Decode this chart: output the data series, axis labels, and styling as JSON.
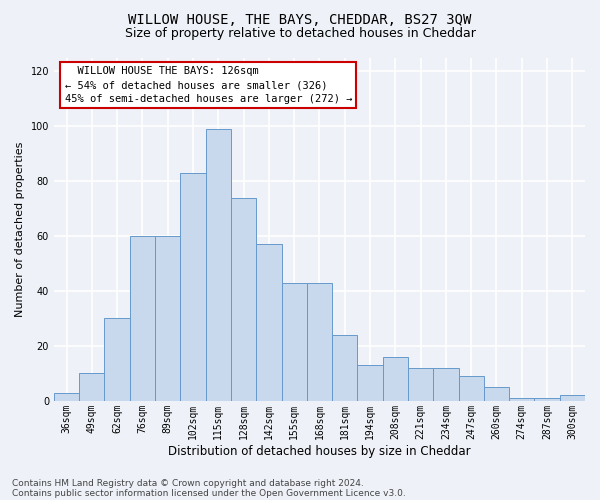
{
  "title": "WILLOW HOUSE, THE BAYS, CHEDDAR, BS27 3QW",
  "subtitle": "Size of property relative to detached houses in Cheddar",
  "xlabel": "Distribution of detached houses by size in Cheddar",
  "ylabel": "Number of detached properties",
  "categories": [
    "36sqm",
    "49sqm",
    "62sqm",
    "76sqm",
    "89sqm",
    "102sqm",
    "115sqm",
    "128sqm",
    "142sqm",
    "155sqm",
    "168sqm",
    "181sqm",
    "194sqm",
    "208sqm",
    "221sqm",
    "234sqm",
    "247sqm",
    "260sqm",
    "274sqm",
    "287sqm",
    "300sqm"
  ],
  "values": [
    3,
    10,
    30,
    60,
    60,
    83,
    99,
    74,
    57,
    43,
    43,
    24,
    13,
    16,
    12,
    12,
    9,
    5,
    1,
    1,
    2
  ],
  "bar_color": "#c9d9ed",
  "bar_edge_color": "#6699cc",
  "highlight_index": 6,
  "ylim": [
    0,
    125
  ],
  "yticks": [
    0,
    20,
    40,
    60,
    80,
    100,
    120
  ],
  "annotation_text": "  WILLOW HOUSE THE BAYS: 126sqm  \n← 54% of detached houses are smaller (326)\n45% of semi-detached houses are larger (272) →",
  "annotation_box_color": "#ffffff",
  "annotation_box_edge_color": "#cc0000",
  "footnote1": "Contains HM Land Registry data © Crown copyright and database right 2024.",
  "footnote2": "Contains public sector information licensed under the Open Government Licence v3.0.",
  "bg_color": "#eef2f8",
  "plot_bg_color": "#eef2f8",
  "grid_color": "#ffffff",
  "title_fontsize": 10,
  "subtitle_fontsize": 9,
  "xlabel_fontsize": 8.5,
  "ylabel_fontsize": 8,
  "tick_fontsize": 7,
  "annot_fontsize": 7.5,
  "footnote_fontsize": 6.5
}
